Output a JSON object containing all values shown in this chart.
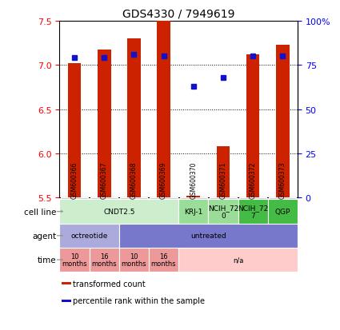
{
  "title": "GDS4330 / 7949619",
  "samples": [
    "GSM600366",
    "GSM600367",
    "GSM600368",
    "GSM600369",
    "GSM600370",
    "GSM600371",
    "GSM600372",
    "GSM600373"
  ],
  "bar_values": [
    7.02,
    7.17,
    7.3,
    7.5,
    5.52,
    6.08,
    7.12,
    7.23
  ],
  "bar_bottom": 5.5,
  "percentile_values": [
    79,
    79,
    81,
    80,
    63,
    68,
    80,
    80
  ],
  "ylim": [
    5.5,
    7.5
  ],
  "yticks_left": [
    5.5,
    6.0,
    6.5,
    7.0,
    7.5
  ],
  "yticks_right": [
    0,
    25,
    50,
    75,
    100
  ],
  "bar_color": "#cc2200",
  "percentile_color": "#1111cc",
  "bar_width": 0.45,
  "sample_bg_color": "#cccccc",
  "cell_line_groups": [
    {
      "label": "CNDT2.5",
      "span": [
        0,
        4
      ],
      "color": "#cceecc"
    },
    {
      "label": "KRJ-1",
      "span": [
        4,
        5
      ],
      "color": "#99dd99"
    },
    {
      "label": "NCIH_72\n0",
      "span": [
        5,
        6
      ],
      "color": "#99dd99"
    },
    {
      "label": "NCIH_72\n7",
      "span": [
        6,
        7
      ],
      "color": "#44bb44"
    },
    {
      "label": "QGP",
      "span": [
        7,
        8
      ],
      "color": "#44bb44"
    }
  ],
  "agent_groups": [
    {
      "label": "octreotide",
      "span": [
        0,
        2
      ],
      "color": "#aaaadd"
    },
    {
      "label": "untreated",
      "span": [
        2,
        8
      ],
      "color": "#7777cc"
    }
  ],
  "time_groups": [
    {
      "label": "10\nmonths",
      "span": [
        0,
        1
      ],
      "color": "#ee9999"
    },
    {
      "label": "16\nmonths",
      "span": [
        1,
        2
      ],
      "color": "#ee9999"
    },
    {
      "label": "10\nmonths",
      "span": [
        2,
        3
      ],
      "color": "#ee9999"
    },
    {
      "label": "16\nmonths",
      "span": [
        3,
        4
      ],
      "color": "#ee9999"
    },
    {
      "label": "n/a",
      "span": [
        4,
        8
      ],
      "color": "#ffcccc"
    }
  ],
  "legend_items": [
    {
      "label": "transformed count",
      "color": "#cc2200"
    },
    {
      "label": "percentile rank within the sample",
      "color": "#1111cc"
    }
  ],
  "row_labels": [
    "cell line",
    "agent",
    "time"
  ],
  "gridline_yticks": [
    6.0,
    6.5,
    7.0
  ]
}
